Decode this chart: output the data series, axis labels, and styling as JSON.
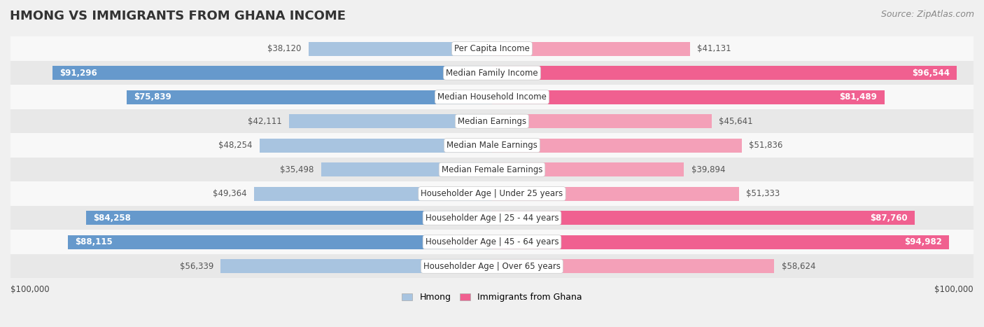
{
  "title": "HMONG VS IMMIGRANTS FROM GHANA INCOME",
  "source": "Source: ZipAtlas.com",
  "categories": [
    "Per Capita Income",
    "Median Family Income",
    "Median Household Income",
    "Median Earnings",
    "Median Male Earnings",
    "Median Female Earnings",
    "Householder Age | Under 25 years",
    "Householder Age | 25 - 44 years",
    "Householder Age | 45 - 64 years",
    "Householder Age | Over 65 years"
  ],
  "hmong_values": [
    38120,
    91296,
    75839,
    42111,
    48254,
    35498,
    49364,
    84258,
    88115,
    56339
  ],
  "ghana_values": [
    41131,
    96544,
    81489,
    45641,
    51836,
    39894,
    51333,
    87760,
    94982,
    58624
  ],
  "hmong_labels": [
    "$38,120",
    "$91,296",
    "$75,839",
    "$42,111",
    "$48,254",
    "$35,498",
    "$49,364",
    "$84,258",
    "$88,115",
    "$56,339"
  ],
  "ghana_labels": [
    "$41,131",
    "$96,544",
    "$81,489",
    "$45,641",
    "$51,836",
    "$39,894",
    "$51,333",
    "$87,760",
    "$94,982",
    "$58,624"
  ],
  "max_value": 100000,
  "hmong_color_light": "#a8c4e0",
  "hmong_color_dark": "#6699cc",
  "ghana_color_light": "#f4a0b8",
  "ghana_color_dark": "#f06090",
  "label_inside_threshold": 60000,
  "background_color": "#f0f0f0",
  "row_bg_even": "#f8f8f8",
  "row_bg_odd": "#e8e8e8",
  "xlabel_left": "$100,000",
  "xlabel_right": "$100,000",
  "legend_hmong": "Hmong",
  "legend_ghana": "Immigrants from Ghana",
  "title_fontsize": 13,
  "source_fontsize": 9,
  "bar_label_fontsize": 8.5,
  "category_fontsize": 8.5
}
